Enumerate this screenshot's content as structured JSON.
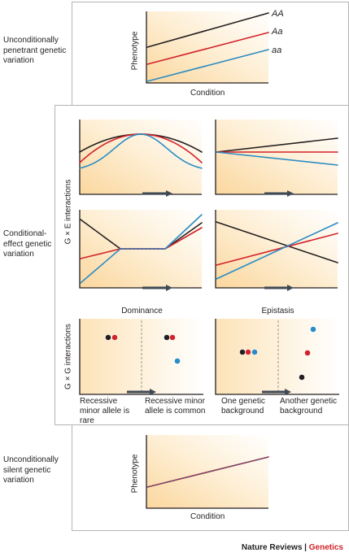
{
  "sections": {
    "top_label": "Unconditionally penetrant genetic variation",
    "middle_label": "Conditional-effect genetic variation",
    "bottom_label": "Unconditionally silent genetic variation"
  },
  "axes": {
    "phenotype": "Phenotype",
    "condition": "Condition"
  },
  "genotypes": {
    "AA": "AA",
    "Aa": "Aa",
    "aa": "aa"
  },
  "interaction_labels": {
    "gxe": "G × E interactions",
    "gxg": "G × G interactions"
  },
  "gxg_panels": {
    "dominance_title": "Dominance",
    "epistasis_title": "Epistasis",
    "dominance_left": "Recessive minor allele is rare",
    "dominance_right": "Recessive minor allele is common",
    "epistasis_left": "One genetic background",
    "epistasis_right": "Another genetic background"
  },
  "footer": {
    "journal": "Nature Reviews",
    "separator": " | ",
    "section": "Genetics"
  },
  "colors": {
    "AA": "#231f20",
    "Aa": "#d2232a",
    "aa": "#2b8cc4",
    "arrow": "#3f4a55",
    "bg_fill": "#fde6c3",
    "frame": "#b4b4b4"
  }
}
